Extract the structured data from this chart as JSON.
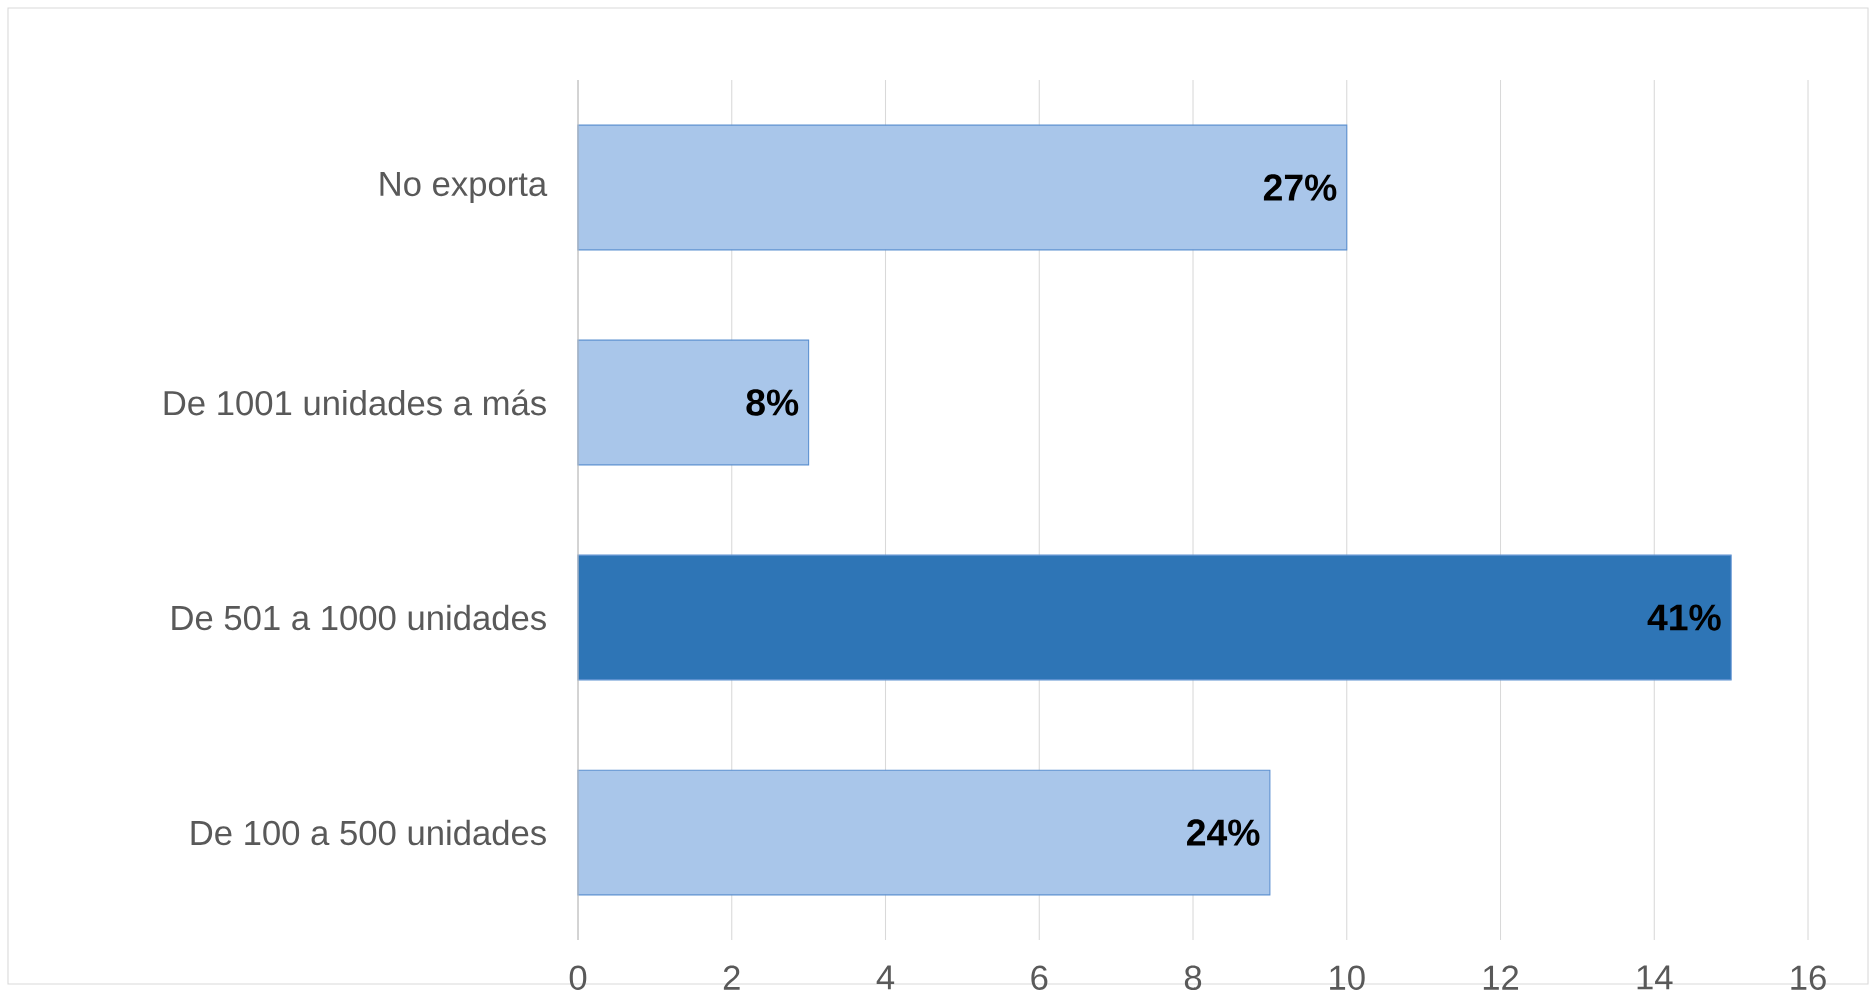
{
  "chart_data": {
    "type": "bar",
    "orientation": "horizontal",
    "categories": [
      "No exporta",
      "De 1001 unidades a más",
      "De 501 a 1000 unidades",
      "De 100 a 500 unidades"
    ],
    "values": [
      10,
      3,
      15,
      9
    ],
    "colors": [
      "#a9c6ea",
      "#a9c6ea",
      "#2e75b6",
      "#a9c6ea"
    ],
    "annotations": [
      {
        "text": "27%",
        "x": 10,
        "y": "No exporta"
      },
      {
        "text": "8%",
        "x": 3,
        "y": "De 1001 unidades a más"
      },
      {
        "text": "41%",
        "x": 15,
        "y": "De 501 a 1000 unidades"
      },
      {
        "text": "24%",
        "x": 9,
        "y": "De 100 a 500 unidades"
      }
    ],
    "xlim": [
      0,
      16
    ],
    "xticks": [
      0,
      2,
      4,
      6,
      8,
      10,
      12,
      14,
      16
    ],
    "grid": "x"
  }
}
